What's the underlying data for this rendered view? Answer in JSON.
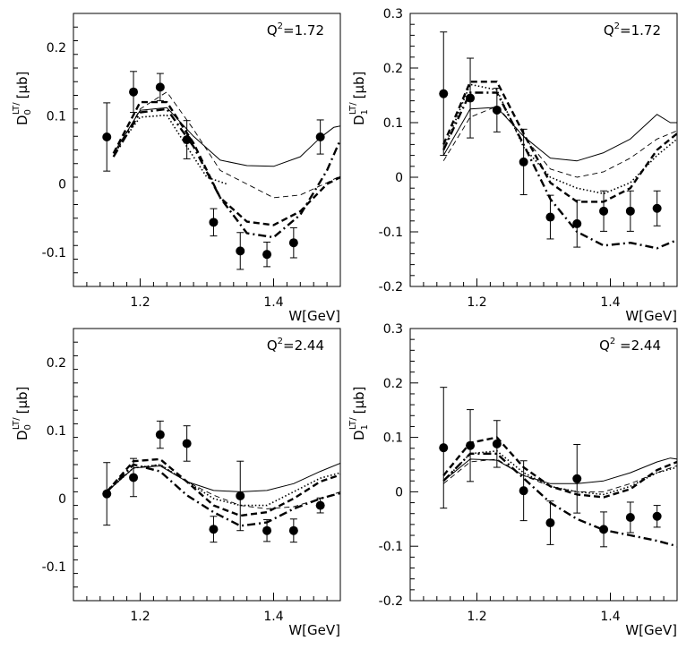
{
  "chart_data": [
    {
      "type": "scatter",
      "panel": "top-left",
      "ylabel": "D0 LT/ [μb]",
      "ylabel_parts": {
        "main": "D",
        "sub": "0",
        "sup": "LT/",
        "unit": "[μb]"
      },
      "xlabel": "W[GeV]",
      "annotation": "Q²=1.72",
      "annotation_parts": {
        "base": "Q",
        "sup": "2",
        "rest": "=1.72"
      },
      "xlim": [
        1.1,
        1.5
      ],
      "ylim": [
        -0.15,
        0.25
      ],
      "xticks": [
        1.2,
        1.4
      ],
      "xtick_labels": [
        "1.2",
        "1.4"
      ],
      "yticks": [
        -0.1,
        0,
        0.1,
        0.2
      ],
      "ytick_labels": [
        "-0.1",
        "0",
        "0.1",
        "0.2"
      ],
      "points": {
        "x": [
          1.15,
          1.19,
          1.23,
          1.27,
          1.31,
          1.35,
          1.39,
          1.43,
          1.47
        ],
        "y": [
          0.069,
          0.135,
          0.142,
          0.065,
          -0.056,
          -0.098,
          -0.103,
          -0.086,
          0.069
        ],
        "err": [
          0.05,
          0.03,
          0.02,
          0.028,
          0.02,
          0.027,
          0.018,
          0.022,
          0.025
        ]
      },
      "series": [
        {
          "name": "solid",
          "style": "solid",
          "width": 1.0,
          "x": [
            1.16,
            1.2,
            1.24,
            1.28,
            1.32,
            1.36,
            1.4,
            1.44,
            1.47,
            1.49,
            1.5
          ],
          "y": [
            0.045,
            0.108,
            0.112,
            0.07,
            0.035,
            0.027,
            0.026,
            0.04,
            0.068,
            0.083,
            0.085
          ]
        },
        {
          "name": "thin-dashed",
          "style": "thin-dashed",
          "width": 0.9,
          "x": [
            1.16,
            1.2,
            1.24,
            1.28,
            1.32,
            1.36,
            1.4,
            1.44,
            1.48,
            1.5
          ],
          "y": [
            0.04,
            0.11,
            0.135,
            0.08,
            0.02,
            0.0,
            -0.02,
            -0.016,
            0.002,
            0.012
          ]
        },
        {
          "name": "dotted",
          "style": "dotted",
          "width": 1.6,
          "x": [
            1.16,
            1.2,
            1.24,
            1.27,
            1.3,
            1.33
          ],
          "y": [
            0.045,
            0.098,
            0.101,
            0.055,
            0.01,
            0.0
          ]
        },
        {
          "name": "thick-dashed",
          "style": "thick-dashed",
          "width": 2.4,
          "x": [
            1.16,
            1.2,
            1.24,
            1.28,
            1.32,
            1.36,
            1.4,
            1.44,
            1.48,
            1.5
          ],
          "y": [
            0.045,
            0.12,
            0.12,
            0.06,
            -0.02,
            -0.055,
            -0.06,
            -0.04,
            0.0,
            0.01
          ]
        },
        {
          "name": "dash-dot",
          "style": "dash-dot",
          "width": 2.4,
          "x": [
            1.16,
            1.2,
            1.24,
            1.28,
            1.32,
            1.36,
            1.4,
            1.44,
            1.48,
            1.5
          ],
          "y": [
            0.04,
            0.105,
            0.11,
            0.055,
            -0.02,
            -0.072,
            -0.078,
            -0.045,
            0.02,
            0.065
          ]
        }
      ]
    },
    {
      "type": "scatter",
      "panel": "top-right",
      "ylabel": "D1 LT/ [μb]",
      "ylabel_parts": {
        "main": "D",
        "sub": "1",
        "sup": "LT/",
        "unit": "[μb]"
      },
      "xlabel": "W[GeV]",
      "annotation": "Q²=1.72",
      "annotation_parts": {
        "base": "Q",
        "sup": "2",
        "rest": "=1.72"
      },
      "xlim": [
        1.1,
        1.5
      ],
      "ylim": [
        -0.2,
        0.3
      ],
      "xticks": [
        1.2,
        1.4
      ],
      "xtick_labels": [
        "1.2",
        "1.4"
      ],
      "yticks": [
        -0.2,
        -0.1,
        0,
        0.1,
        0.2,
        0.3
      ],
      "ytick_labels": [
        "-0.2",
        "-0.1",
        "0",
        "0.1",
        "0.2",
        "0.3"
      ],
      "points": {
        "x": [
          1.15,
          1.19,
          1.23,
          1.27,
          1.31,
          1.35,
          1.39,
          1.43,
          1.47
        ],
        "y": [
          0.153,
          0.145,
          0.123,
          0.028,
          -0.073,
          -0.085,
          -0.062,
          -0.062,
          -0.057
        ],
        "err": [
          0.113,
          0.073,
          0.04,
          0.06,
          0.04,
          0.043,
          0.037,
          0.037,
          0.032
        ]
      },
      "series": [
        {
          "name": "solid",
          "style": "solid",
          "width": 1.0,
          "x": [
            1.15,
            1.19,
            1.23,
            1.27,
            1.31,
            1.35,
            1.39,
            1.43,
            1.47,
            1.49,
            1.5
          ],
          "y": [
            0.04,
            0.125,
            0.128,
            0.075,
            0.035,
            0.03,
            0.045,
            0.07,
            0.115,
            0.1,
            0.1
          ]
        },
        {
          "name": "thin-dashed",
          "style": "thin-dashed",
          "width": 0.9,
          "x": [
            1.15,
            1.19,
            1.23,
            1.27,
            1.31,
            1.35,
            1.39,
            1.43,
            1.47,
            1.5
          ],
          "y": [
            0.03,
            0.11,
            0.13,
            0.075,
            0.015,
            0.0,
            0.01,
            0.035,
            0.07,
            0.085
          ]
        },
        {
          "name": "dotted",
          "style": "dotted",
          "width": 1.6,
          "x": [
            1.15,
            1.19,
            1.23,
            1.27,
            1.31,
            1.35,
            1.39,
            1.43,
            1.47,
            1.5
          ],
          "y": [
            0.05,
            0.17,
            0.16,
            0.055,
            0.0,
            -0.02,
            -0.03,
            -0.01,
            0.04,
            0.07
          ]
        },
        {
          "name": "thick-dashed",
          "style": "thick-dashed",
          "width": 2.4,
          "x": [
            1.15,
            1.19,
            1.23,
            1.27,
            1.31,
            1.35,
            1.39,
            1.43,
            1.47,
            1.5
          ],
          "y": [
            0.06,
            0.175,
            0.175,
            0.08,
            -0.01,
            -0.045,
            -0.045,
            -0.02,
            0.05,
            0.08
          ]
        },
        {
          "name": "dash-dot",
          "style": "dash-dot",
          "width": 2.4,
          "x": [
            1.15,
            1.19,
            1.23,
            1.27,
            1.31,
            1.35,
            1.39,
            1.43,
            1.47,
            1.5
          ],
          "y": [
            0.05,
            0.155,
            0.155,
            0.06,
            -0.04,
            -0.1,
            -0.125,
            -0.12,
            -0.13,
            -0.115
          ]
        }
      ]
    },
    {
      "type": "scatter",
      "panel": "bottom-left",
      "ylabel": "D0 LT/ [μb]",
      "ylabel_parts": {
        "main": "D",
        "sub": "0",
        "sup": "LT/",
        "unit": "[μb]"
      },
      "xlabel": "W[GeV]",
      "annotation": "Q²=2.44",
      "annotation_parts": {
        "base": "Q",
        "sup": "2",
        "rest": "=2.44"
      },
      "xlim": [
        1.1,
        1.5
      ],
      "ylim": [
        -0.15,
        0.25
      ],
      "xticks": [
        1.2,
        1.4
      ],
      "xtick_labels": [
        "1.2",
        "1.4"
      ],
      "yticks": [
        -0.1,
        0,
        0.1,
        0.2
      ],
      "ytick_labels": [
        "-0.1",
        "0",
        "0.1",
        "0.2"
      ],
      "points": {
        "x": [
          1.15,
          1.19,
          1.23,
          1.27,
          1.31,
          1.35,
          1.39,
          1.43,
          1.47
        ],
        "y": [
          0.007,
          0.031,
          0.094,
          0.081,
          -0.045,
          0.004,
          -0.047,
          -0.047,
          -0.01
        ],
        "err": [
          0.046,
          0.028,
          0.02,
          0.026,
          0.019,
          0.051,
          0.016,
          0.017,
          0.011
        ]
      },
      "series": [
        {
          "name": "solid",
          "style": "solid",
          "width": 1.0,
          "x": [
            1.15,
            1.19,
            1.23,
            1.27,
            1.31,
            1.35,
            1.39,
            1.43,
            1.47,
            1.5
          ],
          "y": [
            0.01,
            0.045,
            0.048,
            0.025,
            0.012,
            0.01,
            0.012,
            0.022,
            0.04,
            0.052
          ]
        },
        {
          "name": "thin-dashed",
          "style": "thin-dashed",
          "width": 0.9,
          "x": [
            1.15,
            1.19,
            1.23,
            1.27,
            1.31,
            1.35,
            1.39,
            1.43,
            1.47,
            1.5
          ],
          "y": [
            0.01,
            0.045,
            0.05,
            0.025,
            0.005,
            -0.01,
            -0.015,
            -0.012,
            0.0,
            0.01
          ]
        },
        {
          "name": "dotted",
          "style": "dotted",
          "width": 1.6,
          "x": [
            1.15,
            1.19,
            1.23,
            1.27,
            1.31,
            1.35,
            1.39,
            1.43,
            1.47,
            1.5
          ],
          "y": [
            0.01,
            0.045,
            0.05,
            0.025,
            0.0,
            -0.01,
            -0.01,
            0.01,
            0.03,
            0.038
          ]
        },
        {
          "name": "thick-dashed",
          "style": "thick-dashed",
          "width": 2.4,
          "x": [
            1.15,
            1.19,
            1.23,
            1.27,
            1.31,
            1.35,
            1.39,
            1.43,
            1.47,
            1.5
          ],
          "y": [
            0.01,
            0.055,
            0.058,
            0.025,
            -0.01,
            -0.025,
            -0.02,
            0.0,
            0.025,
            0.035
          ]
        },
        {
          "name": "dash-dot",
          "style": "dash-dot",
          "width": 2.4,
          "x": [
            1.15,
            1.19,
            1.23,
            1.27,
            1.31,
            1.35,
            1.39,
            1.43,
            1.47,
            1.5
          ],
          "y": [
            0.01,
            0.05,
            0.04,
            0.005,
            -0.02,
            -0.04,
            -0.035,
            -0.015,
            0.0,
            0.008
          ]
        }
      ]
    },
    {
      "type": "scatter",
      "panel": "bottom-right",
      "ylabel": "D1 LT/ [μb]",
      "ylabel_parts": {
        "main": "D",
        "sub": "1",
        "sup": "LT/",
        "unit": "[μb]"
      },
      "xlabel": "W[GeV]",
      "annotation": "Q² =2.44",
      "annotation_parts": {
        "base": "Q",
        "sup": "2",
        "rest": " =2.44"
      },
      "xlim": [
        1.1,
        1.5
      ],
      "ylim": [
        -0.2,
        0.3
      ],
      "xticks": [
        1.2,
        1.4
      ],
      "xtick_labels": [
        "1.2",
        "1.4"
      ],
      "yticks": [
        -0.2,
        -0.1,
        0,
        0.1,
        0.2,
        0.3
      ],
      "ytick_labels": [
        "-0.2",
        "-0.1",
        "0",
        "0.1",
        "0.2",
        "0.3"
      ],
      "points": {
        "x": [
          1.15,
          1.19,
          1.23,
          1.27,
          1.31,
          1.35,
          1.39,
          1.43,
          1.47
        ],
        "y": [
          0.081,
          0.085,
          0.088,
          0.002,
          -0.057,
          0.024,
          -0.069,
          -0.047,
          -0.045
        ],
        "err": [
          0.111,
          0.066,
          0.043,
          0.055,
          0.04,
          0.063,
          0.032,
          0.028,
          0.02
        ]
      },
      "series": [
        {
          "name": "solid",
          "style": "solid",
          "width": 1.0,
          "x": [
            1.15,
            1.19,
            1.23,
            1.27,
            1.31,
            1.35,
            1.39,
            1.43,
            1.47,
            1.49,
            1.5
          ],
          "y": [
            0.02,
            0.06,
            0.058,
            0.03,
            0.015,
            0.015,
            0.02,
            0.035,
            0.055,
            0.062,
            0.06
          ]
        },
        {
          "name": "thin-dashed",
          "style": "thin-dashed",
          "width": 0.9,
          "x": [
            1.15,
            1.19,
            1.23,
            1.27,
            1.31,
            1.35,
            1.39,
            1.43,
            1.47,
            1.5
          ],
          "y": [
            0.015,
            0.055,
            0.06,
            0.03,
            0.01,
            0.0,
            0.0,
            0.015,
            0.035,
            0.048
          ]
        },
        {
          "name": "dotted",
          "style": "dotted",
          "width": 1.6,
          "x": [
            1.15,
            1.19,
            1.23,
            1.27,
            1.31,
            1.35,
            1.39,
            1.43,
            1.47,
            1.5
          ],
          "y": [
            0.02,
            0.07,
            0.075,
            0.035,
            0.01,
            0.0,
            -0.005,
            0.01,
            0.035,
            0.045
          ]
        },
        {
          "name": "thick-dashed",
          "style": "thick-dashed",
          "width": 2.4,
          "x": [
            1.15,
            1.19,
            1.23,
            1.27,
            1.31,
            1.35,
            1.39,
            1.43,
            1.47,
            1.5
          ],
          "y": [
            0.03,
            0.09,
            0.1,
            0.045,
            0.01,
            -0.005,
            -0.01,
            0.005,
            0.04,
            0.055
          ]
        },
        {
          "name": "dash-dot",
          "style": "dash-dot",
          "width": 2.4,
          "x": [
            1.15,
            1.19,
            1.23,
            1.27,
            1.31,
            1.35,
            1.39,
            1.43,
            1.47,
            1.5
          ],
          "y": [
            0.02,
            0.07,
            0.07,
            0.025,
            -0.02,
            -0.05,
            -0.07,
            -0.08,
            -0.09,
            -0.1
          ]
        }
      ]
    }
  ]
}
